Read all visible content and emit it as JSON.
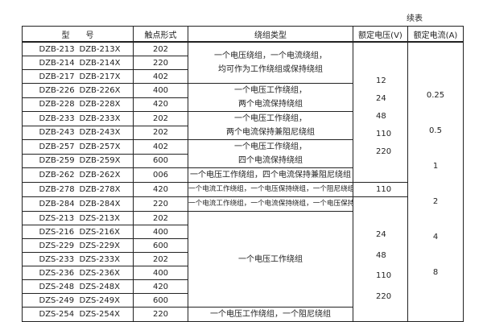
{
  "continued_label": "续表",
  "headers": [
    "型　　号",
    "触点形式",
    "绕组类型",
    "额定电压(V)",
    "额定电流(A)"
  ],
  "rows": [
    {
      "model": "DZB-213",
      "model_x": "DZB-213X",
      "contact": "202"
    },
    {
      "model": "DZB-214",
      "model_x": "DZB-214X",
      "contact": "220"
    },
    {
      "model": "DZB-217",
      "model_x": "DZB-217X",
      "contact": "402"
    },
    {
      "model": "DZB-226",
      "model_x": "DZB-226X",
      "contact": "400"
    },
    {
      "model": "DZB-228",
      "model_x": "DZB-228X",
      "contact": "420"
    },
    {
      "model": "DZB-233",
      "model_x": "DZB-233X",
      "contact": "202"
    },
    {
      "model": "DZB-243",
      "model_x": "DZB-243X",
      "contact": "202"
    },
    {
      "model": "DZB-257",
      "model_x": "DZB-257X",
      "contact": "402"
    },
    {
      "model": "DZB-259",
      "model_x": "DZB-259X",
      "contact": "600"
    },
    {
      "model": "DZB-262",
      "model_x": "DZB-262X",
      "contact": "006"
    },
    {
      "model": "DZB-278",
      "model_x": "DZB-278X",
      "contact": "420"
    },
    {
      "model": "DZB-284",
      "model_x": "DZB-284X",
      "contact": "220"
    },
    {
      "model": "DZS-213",
      "model_x": "DZS-213X",
      "contact": "202"
    },
    {
      "model": "DZS-216",
      "model_x": "DZS-216X",
      "contact": "400"
    },
    {
      "model": "DZS-229",
      "model_x": "DZS-229X",
      "contact": "600"
    },
    {
      "model": "DZS-233",
      "model_x": "DZS-233X",
      "contact": "202"
    },
    {
      "model": "DZS-236",
      "model_x": "DZS-236X",
      "contact": "400"
    },
    {
      "model": "DZS-248",
      "model_x": "DZS-248X",
      "contact": "420"
    },
    {
      "model": "DZS-249",
      "model_x": "DZS-249X",
      "contact": "600"
    },
    {
      "model": "DZS-254",
      "model_x": "DZS-254X",
      "contact": "220"
    }
  ],
  "windings": [
    [
      "一个电压绕组，一个电流绕组，",
      "均可作为工作绕组或保持绕组"
    ],
    [
      "一个电压工作绕组，",
      "两个电流保持绕组"
    ],
    [
      "一个电压工作绕组，",
      "两个电流保持兼阻尼绕组"
    ],
    [
      "一个电压工作绕组，",
      "四个电流保持绕组"
    ],
    [
      "一个电压工作绕组，四个电流保持兼阻尼绕组"
    ],
    [
      "一个电流工作绕组，一个电压保持绕组，一个阻尼绕组"
    ],
    [
      "一个电流工作绕组，一个电流保持绕组，一个电压保持绕组"
    ],
    [
      "一个电压工作绕组"
    ],
    [
      "一个电压工作绕组，一个阻尼绕组"
    ]
  ],
  "voltages": {
    "block1": [
      "12",
      "24",
      "48",
      "110",
      "220"
    ],
    "block2": [
      "110"
    ],
    "block3": [
      "24",
      "48",
      "110",
      "220"
    ]
  },
  "currents": [
    "0.25",
    "0.5",
    "1",
    "2",
    "4",
    "8"
  ]
}
